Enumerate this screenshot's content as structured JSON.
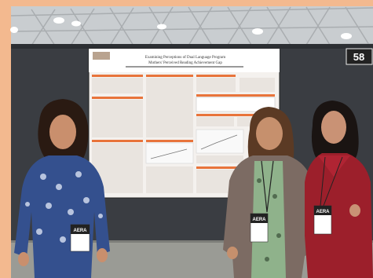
{
  "scene": {
    "booth_number": "58",
    "badge_text": [
      "AERA",
      "AERA",
      "AERA"
    ],
    "poster": {
      "title_line1": "Examining Perceptions of Dual Language Program",
      "title_line2": "Mothers' Perceived Reading Achievement Gap",
      "section_color": "#e8743b"
    }
  },
  "palette": {
    "border": "#f3b98f",
    "wall": "#3a3d42",
    "ceiling": "#c9cdd0",
    "floor": "#9a9b95",
    "poster_paper": "#f4f1ee",
    "accent": "#e8743b"
  }
}
